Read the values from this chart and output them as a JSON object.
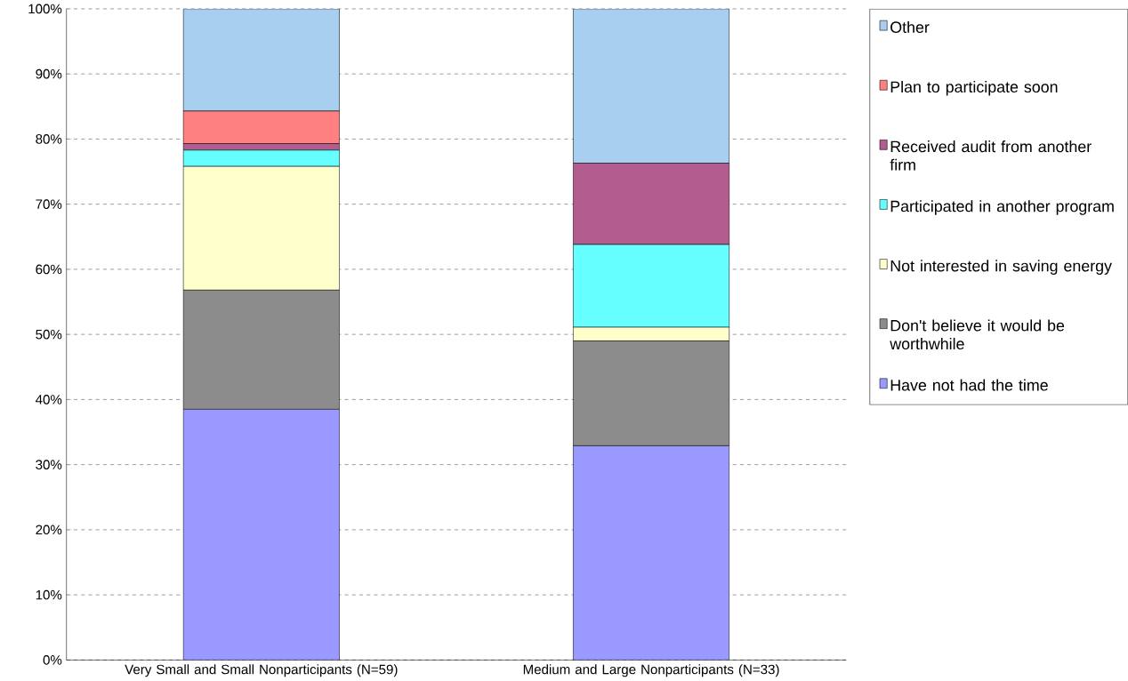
{
  "chart_data": {
    "type": "bar",
    "stacked": true,
    "categories": [
      "Very Small and Small Nonparticipants (N=59)",
      "Medium and Large Nonparticipants (N=33)"
    ],
    "series": [
      {
        "name": "Have not had the time",
        "color": "#9999ff",
        "values": [
          38.5,
          32.9
        ]
      },
      {
        "name": "Don't believe it would be worthwhile",
        "color": "#8c8c8c",
        "values": [
          18.3,
          16.1
        ]
      },
      {
        "name": "Not interested in saving energy",
        "color": "#ffffcc",
        "values": [
          19.0,
          2.1
        ]
      },
      {
        "name": "Participated in another program",
        "color": "#66ffff",
        "values": [
          2.5,
          12.7
        ]
      },
      {
        "name": "Received audit from another firm",
        "color": "#b35c8f",
        "values": [
          1.0,
          12.5
        ]
      },
      {
        "name": "Plan to participate soon",
        "color": "#ff8080",
        "values": [
          5.0,
          0
        ]
      },
      {
        "name": "Other",
        "color": "#a8cff0",
        "values": [
          15.7,
          23.7
        ]
      }
    ],
    "ylim": [
      0,
      100
    ],
    "yticks": [
      {
        "value": 0,
        "label": "0%"
      },
      {
        "value": 10,
        "label": "10%"
      },
      {
        "value": 20,
        "label": "20%"
      },
      {
        "value": 30,
        "label": "30%"
      },
      {
        "value": 40,
        "label": "40%"
      },
      {
        "value": 50,
        "label": "50%"
      },
      {
        "value": 60,
        "label": "60%"
      },
      {
        "value": 70,
        "label": "70%"
      },
      {
        "value": 80,
        "label": "80%"
      },
      {
        "value": 90,
        "label": "90%"
      },
      {
        "value": 100,
        "label": "100%"
      }
    ],
    "grid": "y",
    "legend": "right"
  }
}
